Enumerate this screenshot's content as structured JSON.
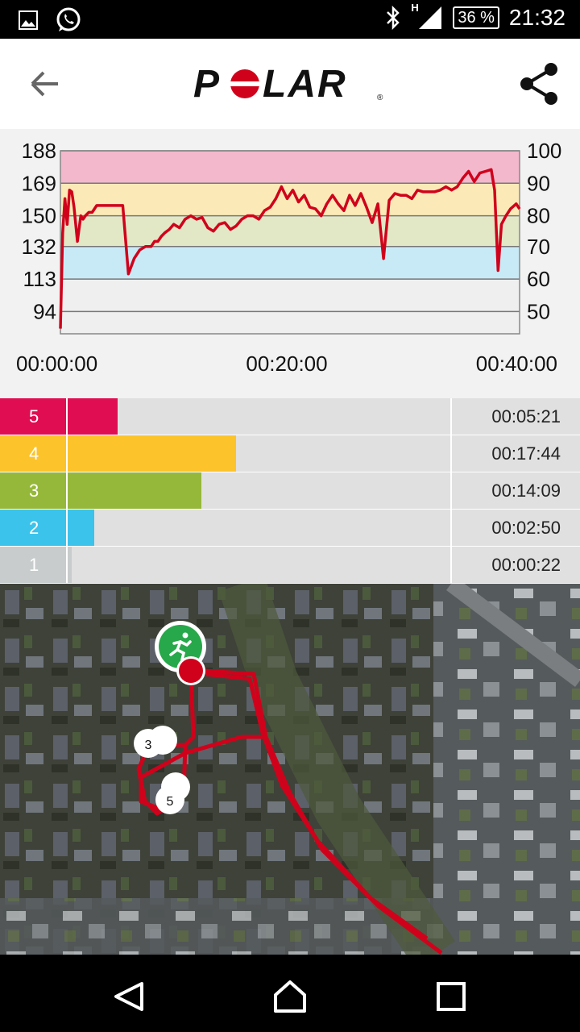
{
  "status_bar": {
    "battery": "36 %",
    "network": "H",
    "time": "21:32",
    "icons": [
      "gallery-icon",
      "whatsapp-icon",
      "bluetooth-icon",
      "signal-icon",
      "battery-icon"
    ]
  },
  "app_bar": {
    "logo_text": "POLAR",
    "back_icon": "arrow-left-icon",
    "share_icon": "share-icon"
  },
  "chart_data": {
    "type": "line",
    "x_ticks": [
      "00:00:00",
      "00:20:00",
      "00:40:00"
    ],
    "x_range_minutes": [
      0,
      40.5
    ],
    "y_left_ticks": [
      "188",
      "169",
      "150",
      "132",
      "113",
      "94"
    ],
    "y_right_ticks": [
      "100",
      "90",
      "80",
      "70",
      "60",
      "50"
    ],
    "ylim": [
      81,
      188
    ],
    "zones": [
      {
        "from": 169,
        "to": 188,
        "color": "#f4b8cc"
      },
      {
        "from": 150,
        "to": 169,
        "color": "#fbeab8"
      },
      {
        "from": 132,
        "to": 150,
        "color": "#e2e7c6"
      },
      {
        "from": 113,
        "to": 132,
        "color": "#c8eaf6"
      },
      {
        "from": 81,
        "to": 113,
        "color": "#efefef"
      }
    ],
    "series": [
      {
        "color": "#d0021b",
        "x": [
          0,
          0.2,
          0.4,
          0.6,
          0.8,
          1.0,
          1.2,
          1.5,
          1.8,
          2.0,
          2.2,
          2.5,
          2.8,
          3.2,
          3.6,
          4.0,
          4.5,
          5.0,
          5.5,
          6.0,
          6.5,
          7.0,
          7.5,
          8.0,
          8.3,
          8.6,
          8.9,
          9.2,
          9.6,
          10,
          10.5,
          11,
          11.5,
          12,
          12.5,
          13,
          13.5,
          14,
          14.5,
          15,
          15.5,
          16,
          16.5,
          17,
          17.5,
          18,
          18.5,
          19,
          19.5,
          20,
          20.5,
          21,
          21.5,
          22,
          22.5,
          23,
          23.5,
          24,
          24.5,
          25,
          25.5,
          26,
          26.5,
          27,
          27.5,
          28,
          28.5,
          29,
          29.5,
          30,
          30.5,
          31,
          31.5,
          32,
          32.5,
          33,
          33.5,
          34,
          34.5,
          35,
          35.5,
          36,
          36.5,
          37,
          37.5,
          38,
          38.3,
          38.6,
          38.9,
          39.3,
          39.7,
          40.2,
          40.5
        ],
        "values": [
          84,
          140,
          160,
          145,
          165,
          164,
          155,
          135,
          150,
          148,
          150,
          152,
          152,
          156,
          156,
          156,
          156,
          156,
          156,
          116,
          125,
          130,
          132,
          132,
          135,
          135,
          138,
          140,
          142,
          145,
          143,
          148,
          150,
          148,
          149,
          143,
          141,
          145,
          146,
          142,
          144,
          148,
          150,
          150,
          148,
          153,
          155,
          160,
          167,
          160,
          165,
          158,
          162,
          155,
          154,
          150,
          157,
          162,
          157,
          153,
          162,
          156,
          163,
          155,
          146,
          157,
          125,
          159,
          163,
          162,
          162,
          160,
          165,
          164,
          164,
          164,
          165,
          167,
          165,
          167,
          172,
          176,
          170,
          175,
          176,
          177,
          165,
          118,
          145,
          150,
          154,
          157,
          154
        ]
      }
    ]
  },
  "zones_table": [
    {
      "zone": "5",
      "time": "00:05:21",
      "color": "#e00d52",
      "fraction": 0.13
    },
    {
      "zone": "4",
      "time": "00:17:44",
      "color": "#fcc32a",
      "fraction": 0.44
    },
    {
      "zone": "3",
      "time": "00:14:09",
      "color": "#96b83a",
      "fraction": 0.35
    },
    {
      "zone": "2",
      "time": "00:02:50",
      "color": "#3bc3ec",
      "fraction": 0.07
    },
    {
      "zone": "1",
      "time": "00:00:22",
      "color": "#c8cccc",
      "fraction": 0.01
    }
  ],
  "map": {
    "markers": [
      "3",
      "5"
    ],
    "route_color": "#d0021b",
    "start_icon": "running-icon"
  },
  "nav_bar": {
    "icons": [
      "back-triangle-icon",
      "home-icon",
      "recents-square-icon"
    ]
  }
}
